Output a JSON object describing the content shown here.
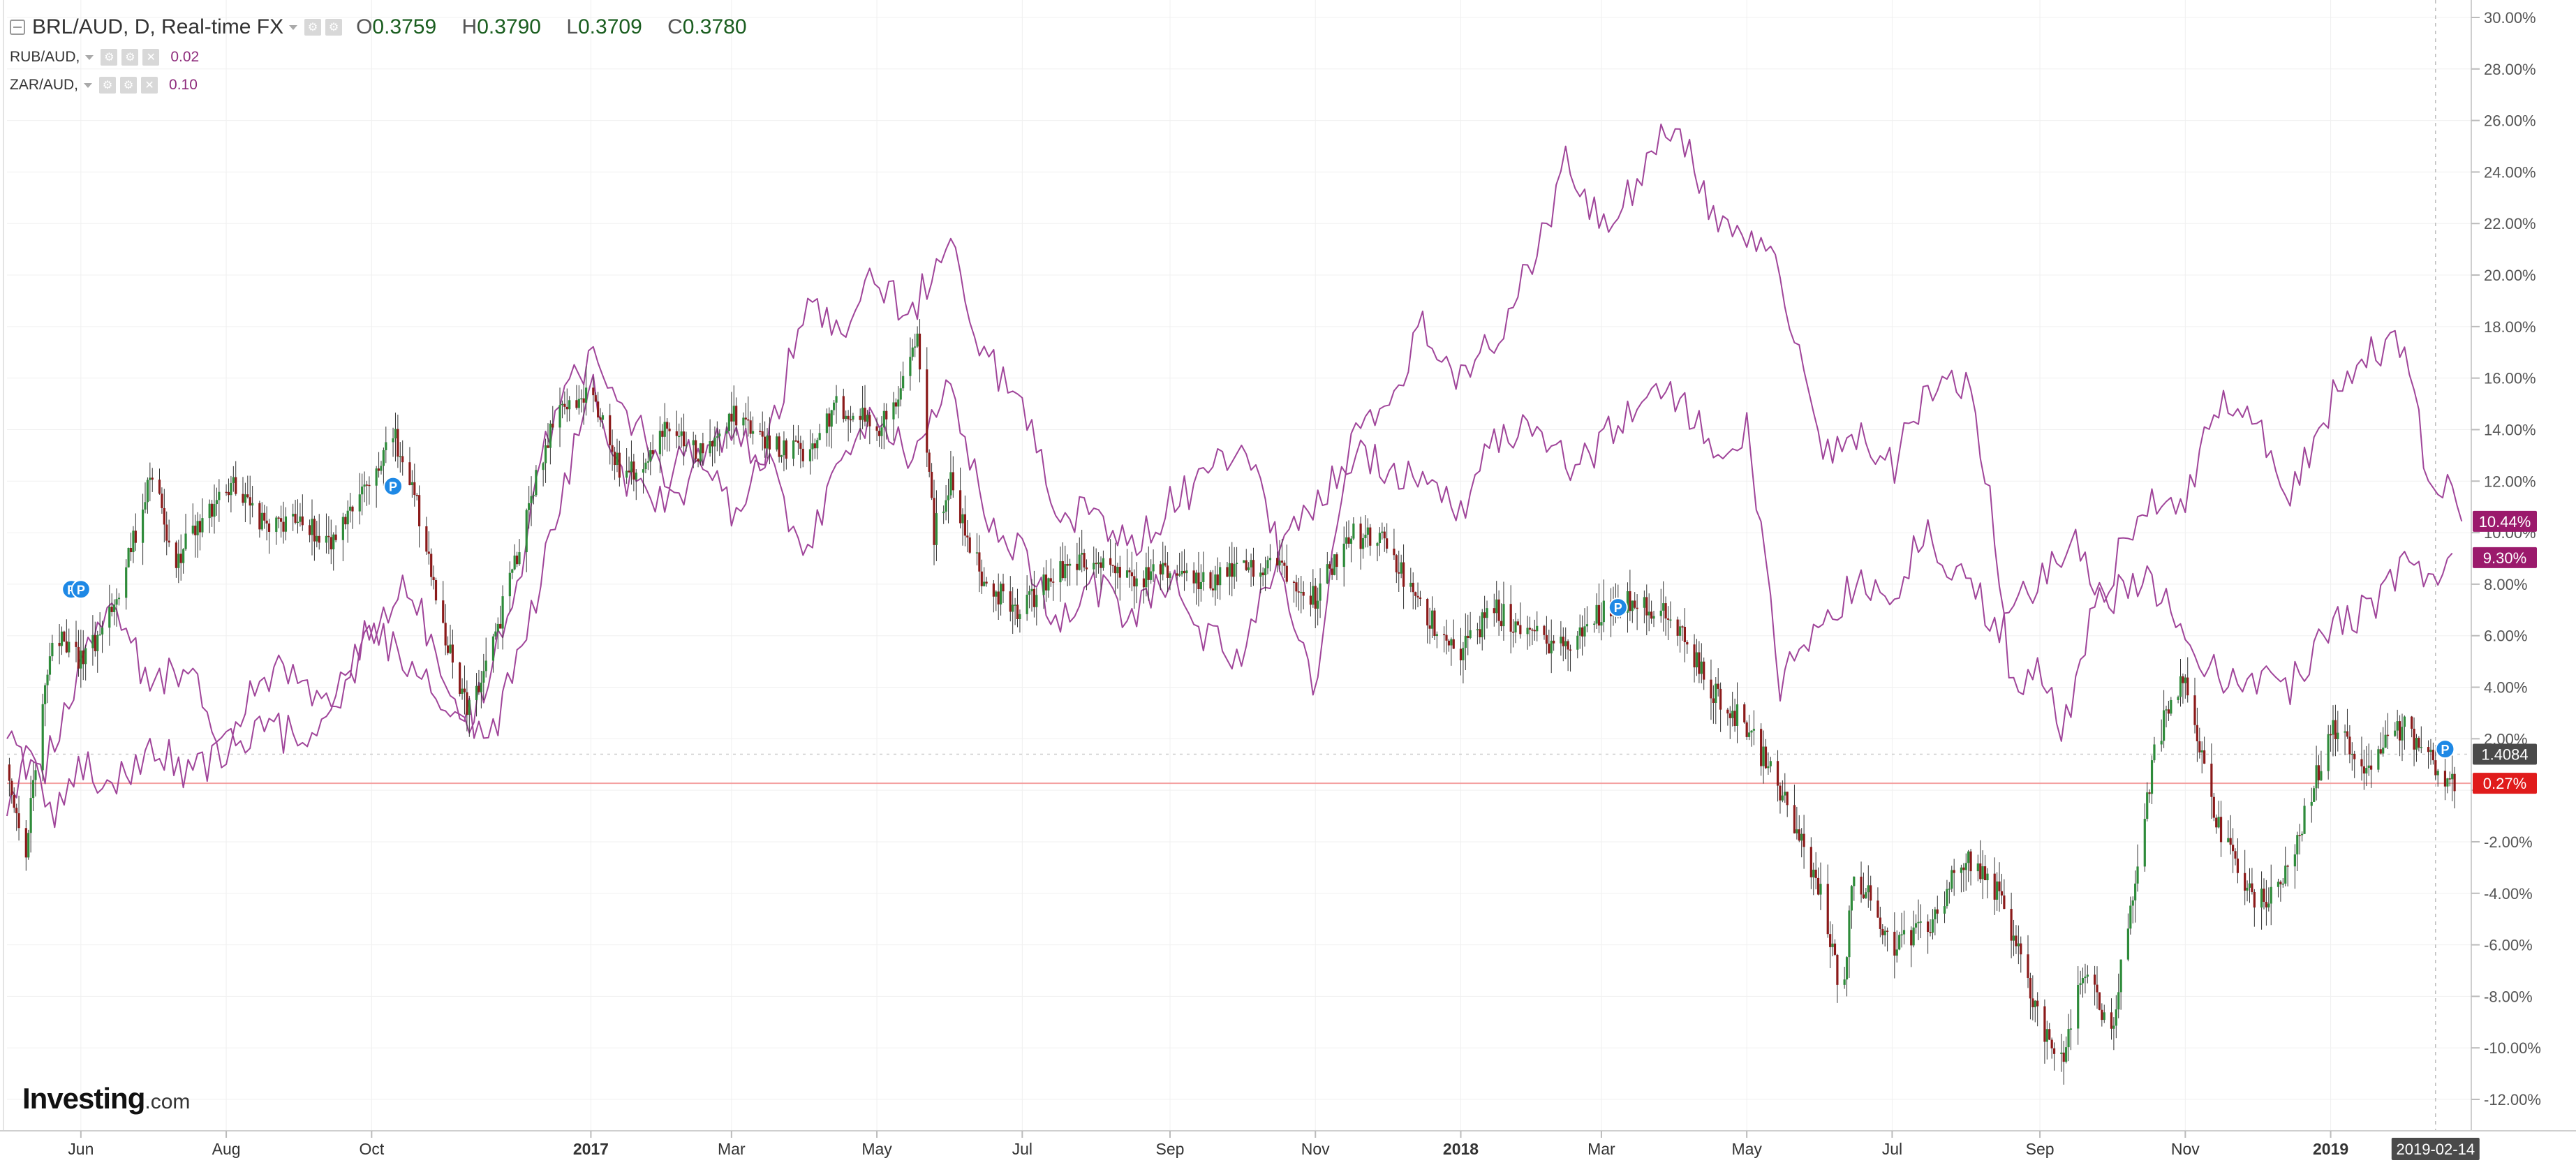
{
  "header": {
    "main_symbol": "BRL/AUD, D, Real-time FX",
    "ohlc": {
      "o_label": "O",
      "o": "0.3759",
      "h_label": "H",
      "h": "0.3790",
      "l_label": "L",
      "l": "0.3709",
      "c_label": "C",
      "c": "0.3780"
    },
    "comparisons": [
      {
        "name": "RUB/AUD,",
        "value": "0.02"
      },
      {
        "name": "ZAR/AUD,",
        "value": "0.10"
      }
    ]
  },
  "logo": {
    "brand": "Investing",
    "suffix": ".com"
  },
  "colors": {
    "up": "#2e8b3a",
    "down": "#8b1a1a",
    "compare": "#a0459a",
    "zero_line": "#f4a0a0",
    "grid": "#f0f0f0",
    "axis_text": "#555555",
    "badge_dark": "#9b1a6c",
    "badge_red": "#e01b1b",
    "badge_grey": "#4a4a4a",
    "marker": "#1e88e5"
  },
  "chart_data": {
    "type": "line",
    "title": "BRL/AUD, D, Real-time FX",
    "y_unit": "%",
    "ylim": [
      -13,
      31
    ],
    "yticks": [
      -12,
      -10,
      -8,
      -6,
      -4,
      -2,
      0,
      2,
      4,
      6,
      8,
      10,
      12,
      14,
      16,
      18,
      20,
      22,
      24,
      26,
      28,
      30
    ],
    "ytick_labels": [
      "-12.00%",
      "-10.00%",
      "-8.00%",
      "-6.00%",
      "-4.00%",
      "-2.00%",
      "",
      "2.00%",
      "4.00%",
      "6.00%",
      "8.00%",
      "10.00%",
      "12.00%",
      "14.00%",
      "16.00%",
      "18.00%",
      "20.00%",
      "22.00%",
      "24.00%",
      "26.00%",
      "28.00%",
      "30.00%"
    ],
    "xlim": [
      "2016-05-01",
      "2019-03-01"
    ],
    "x_ticks": [
      {
        "date": "2016-06-01",
        "label": "Jun",
        "bold": false
      },
      {
        "date": "2016-08-01",
        "label": "Aug",
        "bold": false
      },
      {
        "date": "2016-10-01",
        "label": "Oct",
        "bold": false
      },
      {
        "date": "2017-01-01",
        "label": "2017",
        "bold": true
      },
      {
        "date": "2017-03-01",
        "label": "Mar",
        "bold": false
      },
      {
        "date": "2017-05-01",
        "label": "May",
        "bold": false
      },
      {
        "date": "2017-07-01",
        "label": "Jul",
        "bold": false
      },
      {
        "date": "2017-09-01",
        "label": "Sep",
        "bold": false
      },
      {
        "date": "2017-11-01",
        "label": "Nov",
        "bold": false
      },
      {
        "date": "2018-01-01",
        "label": "2018",
        "bold": true
      },
      {
        "date": "2018-03-01",
        "label": "Mar",
        "bold": false
      },
      {
        "date": "2018-05-01",
        "label": "May",
        "bold": false
      },
      {
        "date": "2018-07-01",
        "label": "Jul",
        "bold": false
      },
      {
        "date": "2018-09-01",
        "label": "Sep",
        "bold": false
      },
      {
        "date": "2018-11-01",
        "label": "Nov",
        "bold": false
      },
      {
        "date": "2019-01-01",
        "label": "2019",
        "bold": true
      }
    ],
    "crosshair": {
      "date": "2019-02-14",
      "label": "2019-02-14"
    },
    "grid": true,
    "series": [
      {
        "name": "BRL/AUD",
        "kind": "candlestick_percent",
        "x": [
          "2016-05-01",
          "2016-05-08",
          "2016-05-20",
          "2016-06-01",
          "2016-06-15",
          "2016-07-01",
          "2016-07-10",
          "2016-07-20",
          "2016-08-01",
          "2016-08-15",
          "2016-09-01",
          "2016-09-15",
          "2016-10-01",
          "2016-10-10",
          "2016-10-20",
          "2016-11-01",
          "2016-11-10",
          "2016-11-20",
          "2016-12-01",
          "2016-12-10",
          "2016-12-20",
          "2017-01-01",
          "2017-01-15",
          "2017-02-01",
          "2017-02-15",
          "2017-03-01",
          "2017-03-15",
          "2017-04-01",
          "2017-04-15",
          "2017-05-01",
          "2017-05-10",
          "2017-05-18",
          "2017-05-25",
          "2017-06-01",
          "2017-06-15",
          "2017-07-01",
          "2017-07-15",
          "2017-08-01",
          "2017-08-15",
          "2017-09-01",
          "2017-09-15",
          "2017-10-01",
          "2017-10-15",
          "2017-11-01",
          "2017-11-15",
          "2017-12-01",
          "2017-12-15",
          "2018-01-01",
          "2018-01-15",
          "2018-02-01",
          "2018-02-15",
          "2018-03-01",
          "2018-03-15",
          "2018-04-01",
          "2018-04-15",
          "2018-05-01",
          "2018-05-15",
          "2018-06-01",
          "2018-06-10",
          "2018-06-15",
          "2018-07-01",
          "2018-07-15",
          "2018-08-01",
          "2018-08-15",
          "2018-09-01",
          "2018-09-10",
          "2018-09-20",
          "2018-10-01",
          "2018-10-10",
          "2018-10-20",
          "2018-11-01",
          "2018-11-15",
          "2018-12-01",
          "2018-12-15",
          "2019-01-01",
          "2019-01-15",
          "2019-02-01",
          "2019-02-14",
          "2019-02-22"
        ],
        "values": [
          1.0,
          -3.0,
          6.0,
          5.0,
          7.0,
          12.5,
          9.0,
          10.0,
          12.0,
          10.5,
          10.5,
          9.5,
          12.0,
          14.0,
          11.0,
          6.0,
          3.0,
          5.5,
          9.0,
          12.5,
          15.0,
          15.5,
          12.0,
          14.0,
          13.0,
          14.5,
          13.5,
          13.0,
          15.0,
          14.0,
          15.0,
          17.5,
          10.0,
          12.0,
          8.0,
          7.0,
          8.5,
          9.0,
          8.0,
          8.5,
          8.0,
          8.5,
          9.0,
          7.5,
          10.0,
          9.5,
          7.0,
          5.5,
          7.0,
          6.0,
          5.5,
          7.0,
          7.5,
          6.5,
          4.0,
          2.5,
          0.0,
          -4.0,
          -8.0,
          -3.0,
          -6.0,
          -5.5,
          -2.5,
          -4.0,
          -9.0,
          -10.5,
          -7.0,
          -9.5,
          -4.0,
          2.0,
          4.5,
          -1.5,
          -4.5,
          -3.0,
          2.5,
          1.0,
          2.5,
          1.0,
          0.27
        ]
      },
      {
        "name": "RUB/AUD",
        "kind": "line",
        "x": [
          "2016-05-01",
          "2016-05-10",
          "2016-05-20",
          "2016-06-01",
          "2016-06-15",
          "2016-07-01",
          "2016-07-15",
          "2016-08-01",
          "2016-08-15",
          "2016-09-01",
          "2016-09-15",
          "2016-10-01",
          "2016-10-15",
          "2016-11-01",
          "2016-11-10",
          "2016-11-20",
          "2016-12-01",
          "2016-12-15",
          "2017-01-01",
          "2017-01-15",
          "2017-02-01",
          "2017-02-15",
          "2017-03-01",
          "2017-03-15",
          "2017-04-01",
          "2017-04-15",
          "2017-05-01",
          "2017-05-15",
          "2017-06-01",
          "2017-06-15",
          "2017-07-01",
          "2017-07-15",
          "2017-08-01",
          "2017-08-15",
          "2017-09-01",
          "2017-09-15",
          "2017-10-01",
          "2017-10-15",
          "2017-11-01",
          "2017-11-15",
          "2017-12-01",
          "2017-12-15",
          "2018-01-01",
          "2018-01-15",
          "2018-02-01",
          "2018-02-15",
          "2018-03-01",
          "2018-03-15",
          "2018-04-01",
          "2018-04-10",
          "2018-04-20",
          "2018-05-01",
          "2018-05-15",
          "2018-06-01",
          "2018-06-15",
          "2018-07-01",
          "2018-07-15",
          "2018-08-01",
          "2018-08-15",
          "2018-09-01",
          "2018-09-15",
          "2018-10-01",
          "2018-10-15",
          "2018-11-01",
          "2018-11-15",
          "2018-12-01",
          "2018-12-15",
          "2019-01-01",
          "2019-01-15",
          "2019-02-01",
          "2019-02-14",
          "2019-02-22"
        ],
        "values": [
          -1.0,
          1.5,
          -1.5,
          1.0,
          0.0,
          2.0,
          0.5,
          1.5,
          2.5,
          2.0,
          3.5,
          6.0,
          8.5,
          4.0,
          3.0,
          2.0,
          5.0,
          9.5,
          16.0,
          12.0,
          11.0,
          12.5,
          14.0,
          13.0,
          9.0,
          13.0,
          15.0,
          13.0,
          16.0,
          11.0,
          9.0,
          6.5,
          8.0,
          6.5,
          8.5,
          6.0,
          5.0,
          9.0,
          11.0,
          13.0,
          12.5,
          12.0,
          11.0,
          13.5,
          14.5,
          12.5,
          13.5,
          15.0,
          15.5,
          14.0,
          13.5,
          14.0,
          4.0,
          6.5,
          8.0,
          7.5,
          10.0,
          8.0,
          6.5,
          8.0,
          9.5,
          7.5,
          8.5,
          6.0,
          4.5,
          4.5,
          4.0,
          6.5,
          7.0,
          8.5,
          8.5,
          9.3
        ]
      },
      {
        "name": "ZAR/AUD",
        "kind": "line",
        "x": [
          "2016-05-01",
          "2016-05-15",
          "2016-06-01",
          "2016-06-15",
          "2016-07-01",
          "2016-07-15",
          "2016-08-01",
          "2016-08-15",
          "2016-09-01",
          "2016-09-15",
          "2016-10-01",
          "2016-10-15",
          "2016-11-01",
          "2016-11-10",
          "2016-11-20",
          "2016-12-01",
          "2016-12-15",
          "2017-01-01",
          "2017-01-15",
          "2017-02-01",
          "2017-02-15",
          "2017-03-01",
          "2017-03-15",
          "2017-04-01",
          "2017-04-15",
          "2017-05-01",
          "2017-05-15",
          "2017-06-01",
          "2017-06-15",
          "2017-07-01",
          "2017-07-15",
          "2017-08-01",
          "2017-08-15",
          "2017-09-01",
          "2017-09-15",
          "2017-10-01",
          "2017-10-15",
          "2017-11-01",
          "2017-11-15",
          "2017-12-01",
          "2017-12-15",
          "2018-01-01",
          "2018-01-15",
          "2018-02-01",
          "2018-02-15",
          "2018-03-01",
          "2018-03-15",
          "2018-04-01",
          "2018-04-15",
          "2018-05-01",
          "2018-05-15",
          "2018-06-01",
          "2018-06-15",
          "2018-07-01",
          "2018-07-15",
          "2018-08-01",
          "2018-08-10",
          "2018-08-20",
          "2018-09-01",
          "2018-09-10",
          "2018-09-20",
          "2018-10-01",
          "2018-10-15",
          "2018-11-01",
          "2018-11-15",
          "2018-12-01",
          "2018-12-15",
          "2019-01-01",
          "2019-01-15",
          "2019-02-01",
          "2019-02-10",
          "2019-02-20",
          "2019-02-25"
        ],
        "values": [
          2.0,
          0.5,
          5.0,
          7.0,
          4.0,
          5.0,
          1.0,
          4.5,
          4.5,
          3.0,
          6.5,
          5.0,
          3.0,
          2.0,
          5.0,
          8.0,
          14.0,
          17.0,
          15.0,
          12.0,
          13.5,
          11.0,
          13.0,
          19.0,
          17.5,
          20.0,
          18.5,
          21.5,
          17.0,
          15.0,
          11.0,
          10.5,
          9.5,
          11.0,
          12.0,
          13.5,
          10.0,
          3.5,
          14.0,
          15.0,
          18.0,
          16.0,
          17.5,
          20.5,
          24.5,
          22.0,
          23.5,
          26.0,
          22.5,
          21.5,
          20.0,
          13.0,
          14.0,
          12.5,
          15.5,
          16.0,
          12.0,
          3.5,
          5.0,
          2.0,
          6.0,
          8.5,
          11.0,
          11.5,
          15.0,
          14.0,
          11.5,
          15.0,
          17.0,
          17.5,
          12.5,
          12.0,
          10.44
        ]
      }
    ],
    "last_values": [
      {
        "series": "ZAR/AUD",
        "label": "10.44%",
        "style": "dark"
      },
      {
        "series": "RUB/AUD",
        "label": "9.30%",
        "style": "dark"
      },
      {
        "series": "price",
        "label": "1.4084",
        "style": "grey",
        "y": 1.4
      },
      {
        "series": "BRL/AUD",
        "label": "0.27%",
        "style": "red"
      }
    ],
    "event_markers": [
      {
        "date": "2016-05-28",
        "y": 7.8,
        "label": "P"
      },
      {
        "date": "2016-06-01",
        "y": 7.8,
        "label": "P"
      },
      {
        "date": "2016-10-10",
        "y": 11.8,
        "label": "P"
      },
      {
        "date": "2018-03-08",
        "y": 7.1,
        "label": "P"
      },
      {
        "date": "2019-02-18",
        "y": 1.6,
        "label": "P"
      }
    ]
  }
}
